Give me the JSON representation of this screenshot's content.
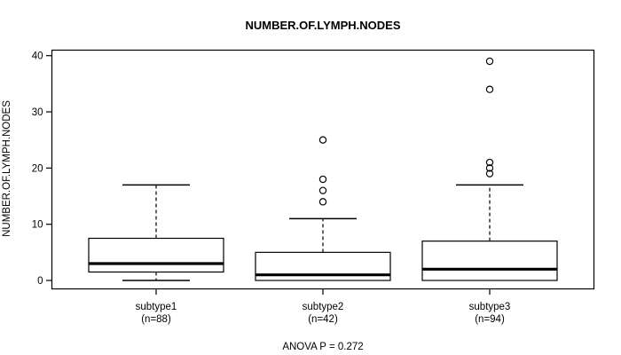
{
  "colors": {
    "foreground": "#000000",
    "background": "#ffffff"
  },
  "chart_data": {
    "type": "boxplot",
    "title": "NUMBER.OF.LYMPH.NODES",
    "ylabel": "NUMBER.OF.LYMPH.NODES",
    "xlabel": "",
    "ylim": [
      0,
      40
    ],
    "yticks": [
      0,
      10,
      20,
      30,
      40
    ],
    "grid": false,
    "legend": "none",
    "annotation": "ANOVA P = 0.272",
    "groups": [
      {
        "label": "subtype1",
        "sublabel": "(n=88)",
        "n": 88,
        "min": 0,
        "q1": 1.5,
        "median": 3,
        "q3": 7.5,
        "max": 17,
        "outliers": []
      },
      {
        "label": "subtype2",
        "sublabel": "(n=42)",
        "n": 42,
        "min": 0,
        "q1": 0,
        "median": 1,
        "q3": 5,
        "max": 11,
        "outliers": [
          14,
          16,
          18,
          25
        ]
      },
      {
        "label": "subtype3",
        "sublabel": "(n=94)",
        "n": 94,
        "min": 0,
        "q1": 0,
        "median": 2,
        "q3": 7,
        "max": 17,
        "outliers": [
          19,
          20,
          21,
          34,
          39
        ]
      }
    ]
  }
}
